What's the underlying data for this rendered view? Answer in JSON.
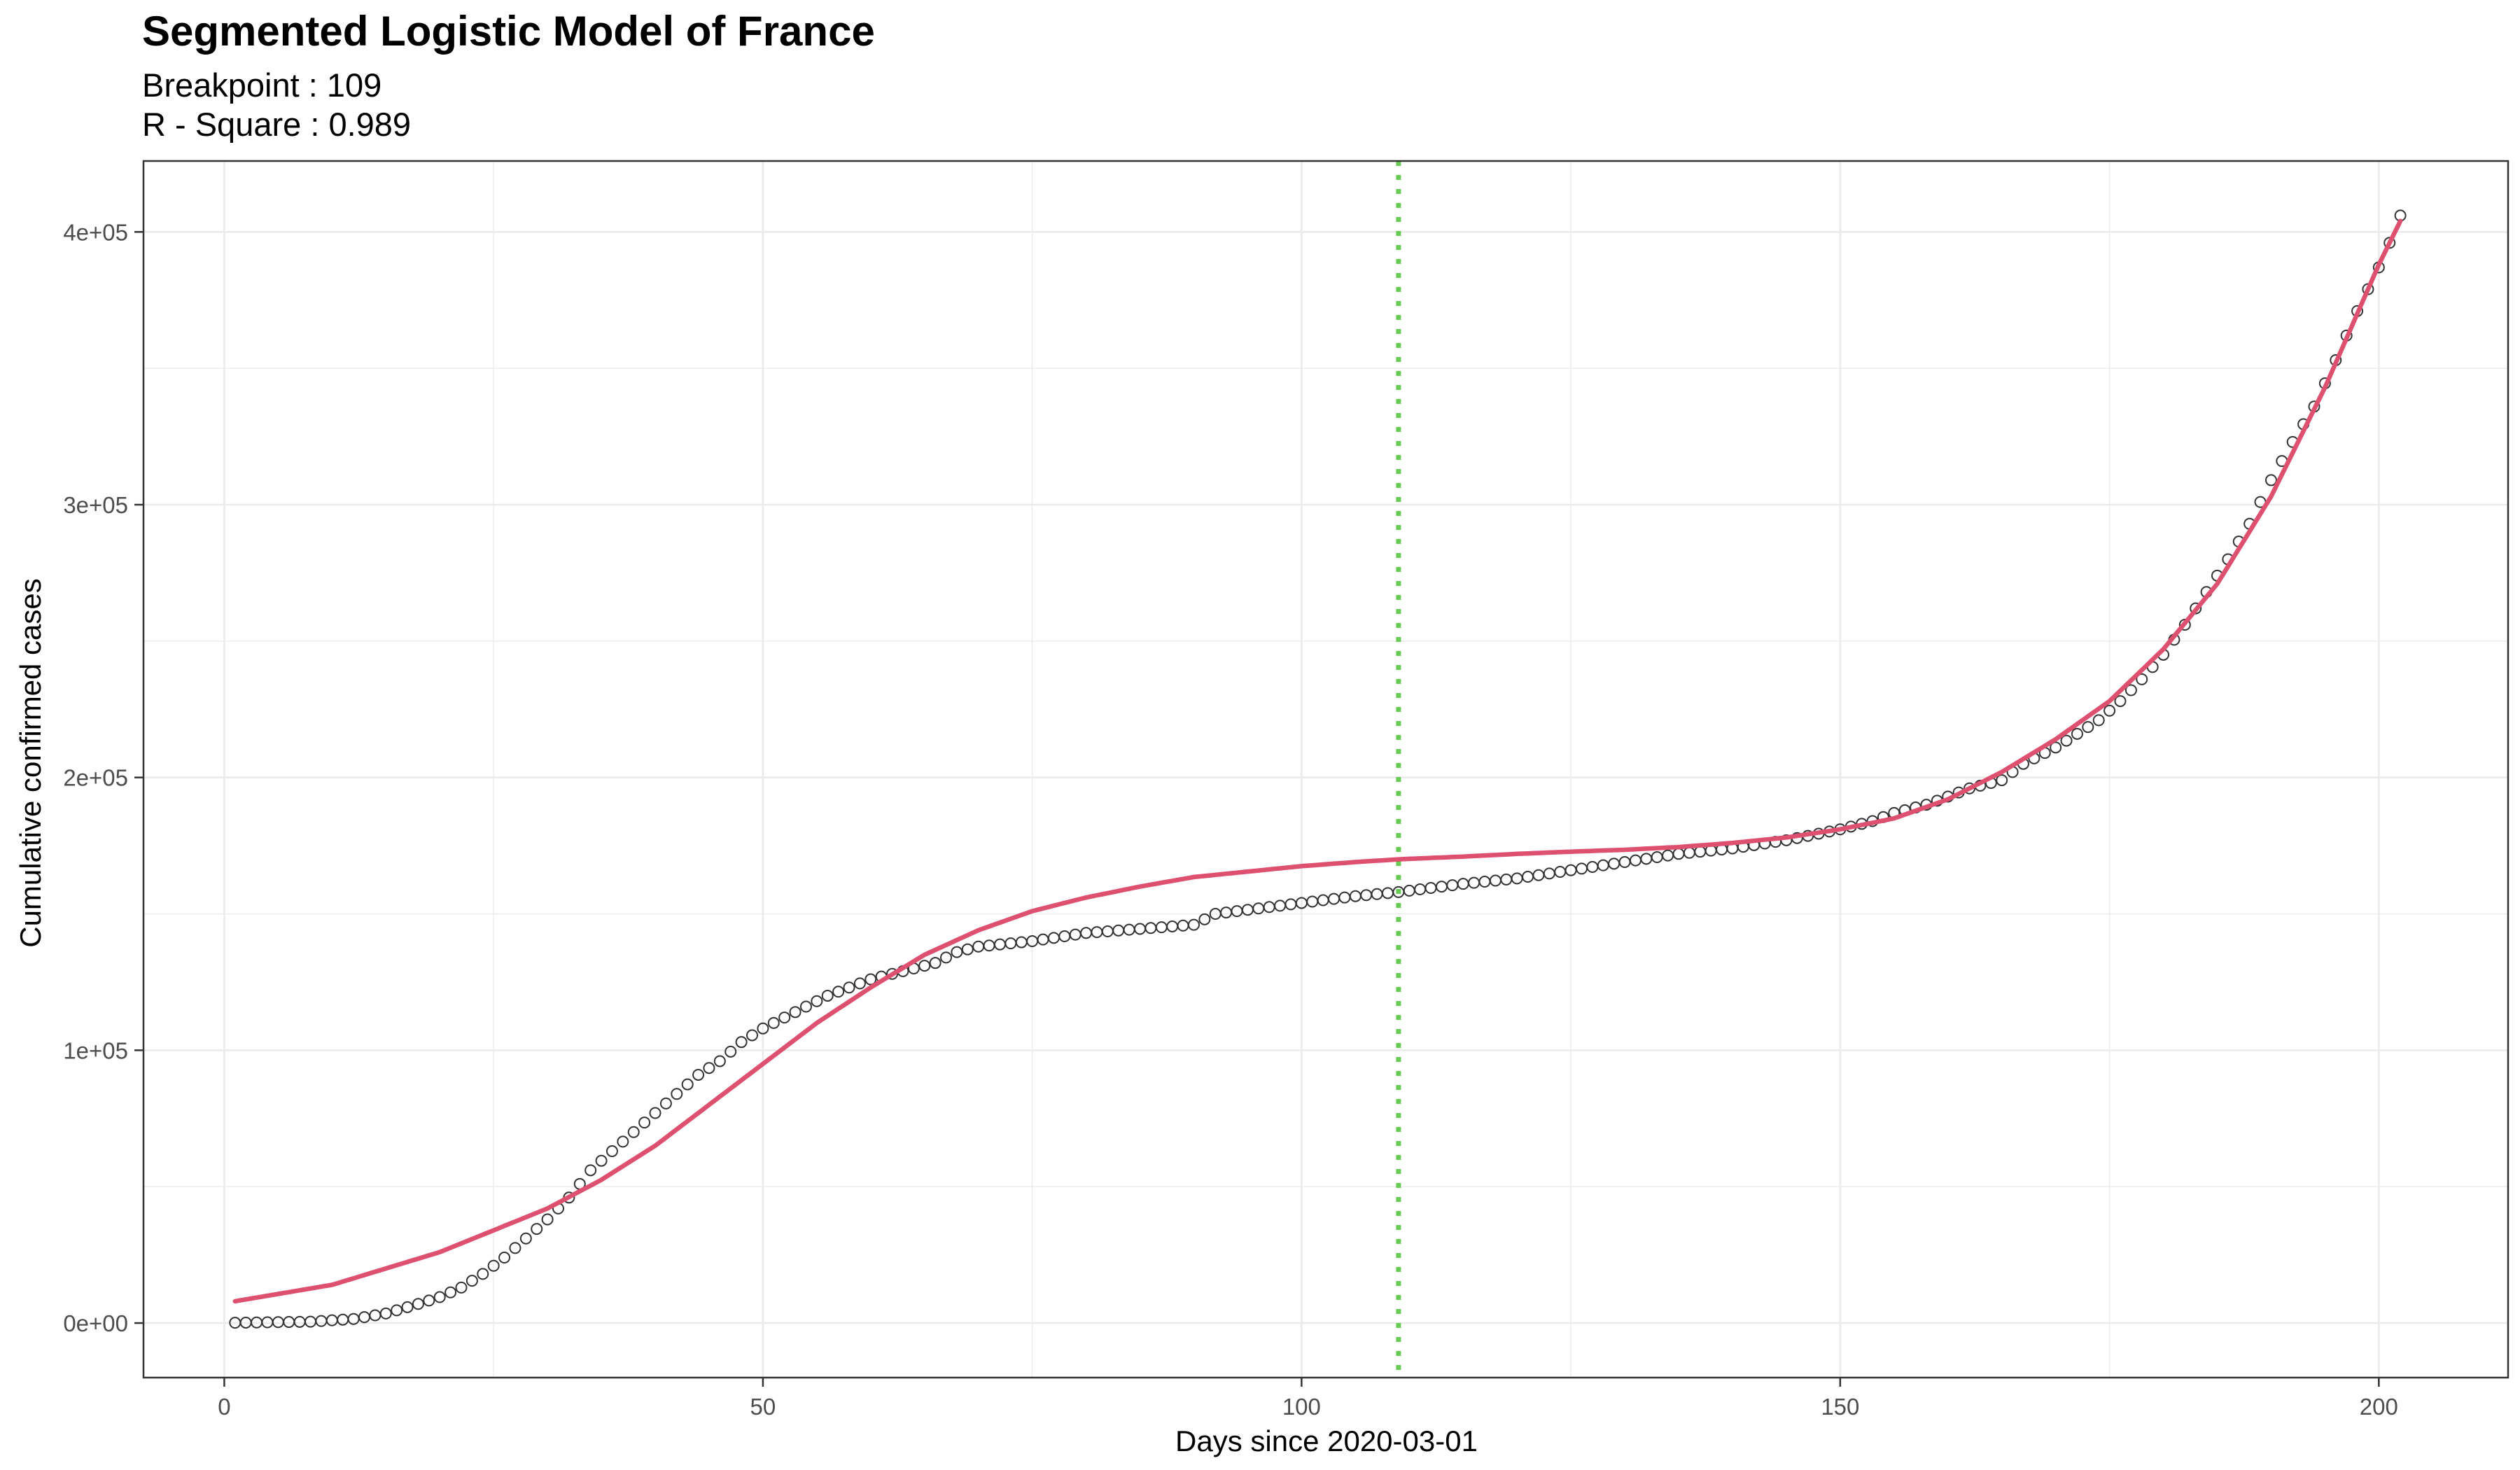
{
  "chart_data": {
    "type": "scatter",
    "title": "Segmented Logistic Model of France",
    "subtitle_lines": [
      "Breakpoint : 109",
      "R - Square : 0.989"
    ],
    "xlabel": "Days since 2020-03-01",
    "ylabel": "Cumulative confirmed cases",
    "xlim": [
      -7.5,
      212
    ],
    "ylim": [
      -20000,
      426000
    ],
    "x_ticks": [
      0,
      50,
      100,
      150,
      200
    ],
    "x_tick_labels": [
      "0",
      "50",
      "100",
      "150",
      "200"
    ],
    "y_ticks": [
      0,
      100000,
      200000,
      300000,
      400000
    ],
    "y_tick_labels": [
      "0e+00",
      "1e+05",
      "2e+05",
      "3e+05",
      "4e+05"
    ],
    "grid": true,
    "breakpoint": 109,
    "colors": {
      "points": "#333333",
      "fit": "#de5070",
      "breakpoint": "#66cc55",
      "grid": "#ebebeb",
      "frame": "#333333"
    },
    "observed_anchors": [
      [
        1,
        100
      ],
      [
        8,
        500
      ],
      [
        12,
        1500
      ],
      [
        15,
        3500
      ],
      [
        18,
        7000
      ],
      [
        20,
        9500
      ],
      [
        22,
        13000
      ],
      [
        24,
        18000
      ],
      [
        26,
        24000
      ],
      [
        28,
        31000
      ],
      [
        30,
        38000
      ],
      [
        32,
        46000
      ],
      [
        34,
        56000
      ],
      [
        36,
        63000
      ],
      [
        38,
        70000
      ],
      [
        40,
        77000
      ],
      [
        42,
        84000
      ],
      [
        44,
        91000
      ],
      [
        46,
        96000
      ],
      [
        48,
        103000
      ],
      [
        50,
        108000
      ],
      [
        52,
        112000
      ],
      [
        54,
        116000
      ],
      [
        56,
        120000
      ],
      [
        58,
        123000
      ],
      [
        60,
        126000
      ],
      [
        62,
        128000
      ],
      [
        64,
        130000
      ],
      [
        66,
        132000
      ],
      [
        68,
        136000
      ],
      [
        70,
        138000
      ],
      [
        75,
        140000
      ],
      [
        80,
        143000
      ],
      [
        85,
        144500
      ],
      [
        90,
        146000
      ],
      [
        92,
        150000
      ],
      [
        96,
        152000
      ],
      [
        100,
        154000
      ],
      [
        105,
        156500
      ],
      [
        109,
        158000
      ],
      [
        115,
        161000
      ],
      [
        120,
        163000
      ],
      [
        125,
        166000
      ],
      [
        130,
        169000
      ],
      [
        135,
        172000
      ],
      [
        140,
        174000
      ],
      [
        145,
        177000
      ],
      [
        150,
        181000
      ],
      [
        153,
        184000
      ],
      [
        155,
        187000
      ],
      [
        158,
        190000
      ],
      [
        160,
        193000
      ],
      [
        162,
        196000
      ],
      [
        165,
        199000
      ],
      [
        167,
        205000
      ],
      [
        170,
        211000
      ],
      [
        172,
        216000
      ],
      [
        174,
        221000
      ],
      [
        176,
        228000
      ],
      [
        178,
        236000
      ],
      [
        180,
        245000
      ],
      [
        182,
        256000
      ],
      [
        184,
        268000
      ],
      [
        186,
        280000
      ],
      [
        188,
        293000
      ],
      [
        190,
        309000
      ],
      [
        192,
        323000
      ],
      [
        194,
        336000
      ],
      [
        196,
        353000
      ],
      [
        198,
        371000
      ],
      [
        200,
        387000
      ],
      [
        201,
        396000
      ],
      [
        202,
        406000
      ]
    ],
    "fit_anchors": [
      [
        1,
        8000
      ],
      [
        10,
        14000
      ],
      [
        20,
        26000
      ],
      [
        30,
        42000
      ],
      [
        35,
        52500
      ],
      [
        40,
        65000
      ],
      [
        45,
        80000
      ],
      [
        50,
        95000
      ],
      [
        55,
        110000
      ],
      [
        60,
        123000
      ],
      [
        65,
        135000
      ],
      [
        70,
        144000
      ],
      [
        75,
        151000
      ],
      [
        80,
        156000
      ],
      [
        85,
        160000
      ],
      [
        90,
        163500
      ],
      [
        95,
        165500
      ],
      [
        100,
        167500
      ],
      [
        105,
        169000
      ],
      [
        109,
        170000
      ],
      [
        115,
        171000
      ],
      [
        120,
        172000
      ],
      [
        125,
        172800
      ],
      [
        130,
        173500
      ],
      [
        135,
        174500
      ],
      [
        140,
        176000
      ],
      [
        145,
        178000
      ],
      [
        150,
        181000
      ],
      [
        155,
        185000
      ],
      [
        160,
        192000
      ],
      [
        165,
        202000
      ],
      [
        170,
        214000
      ],
      [
        175,
        228000
      ],
      [
        180,
        247000
      ],
      [
        185,
        271000
      ],
      [
        190,
        303000
      ],
      [
        195,
        343000
      ],
      [
        200,
        388000
      ],
      [
        202,
        404000
      ]
    ]
  }
}
